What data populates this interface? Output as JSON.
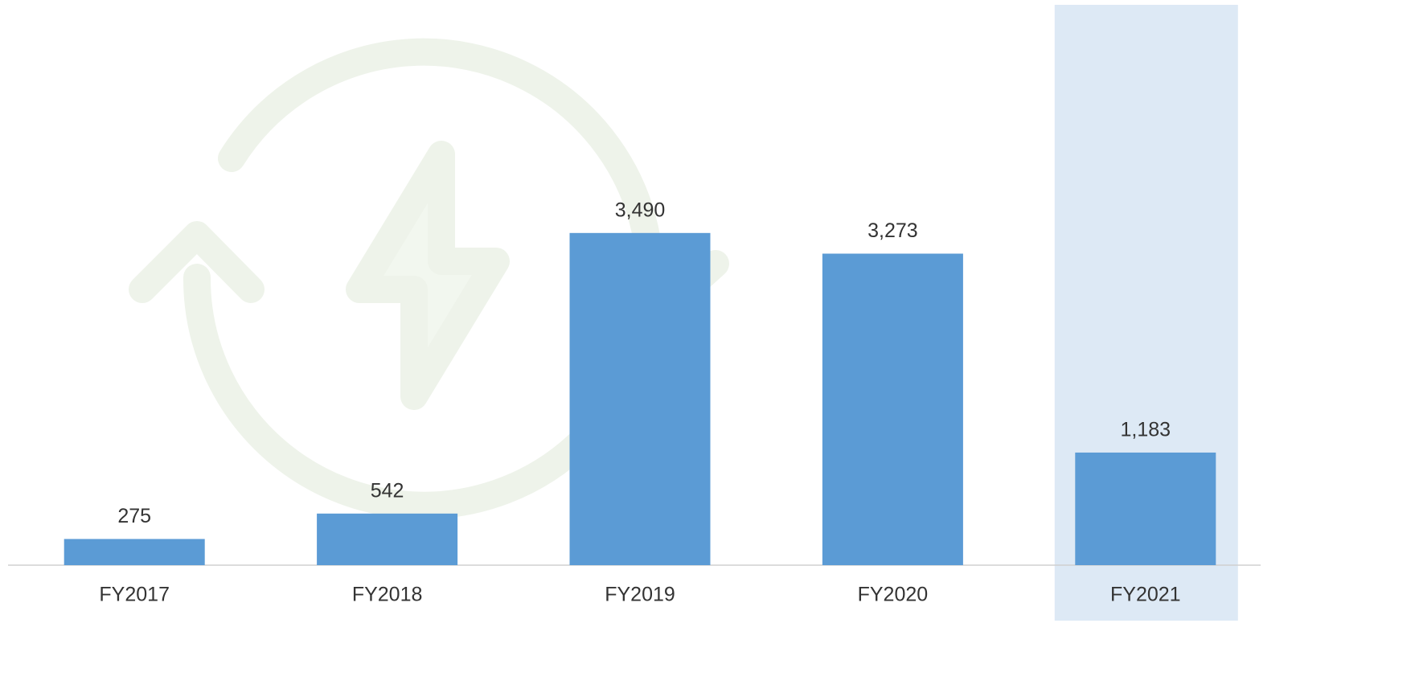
{
  "chart_data": {
    "type": "bar",
    "categories": [
      "FY2017",
      "FY2018",
      "FY2019",
      "FY2020",
      "FY2021"
    ],
    "values": [
      275,
      542,
      3490,
      3273,
      1183
    ],
    "value_labels": [
      "275",
      "542",
      "3,490",
      "3,273",
      "1,183"
    ],
    "color": "#5b9bd5",
    "highlight": "FY2021",
    "highlight_color": "#dde9f5",
    "ylim": [
      0,
      5600
    ]
  }
}
